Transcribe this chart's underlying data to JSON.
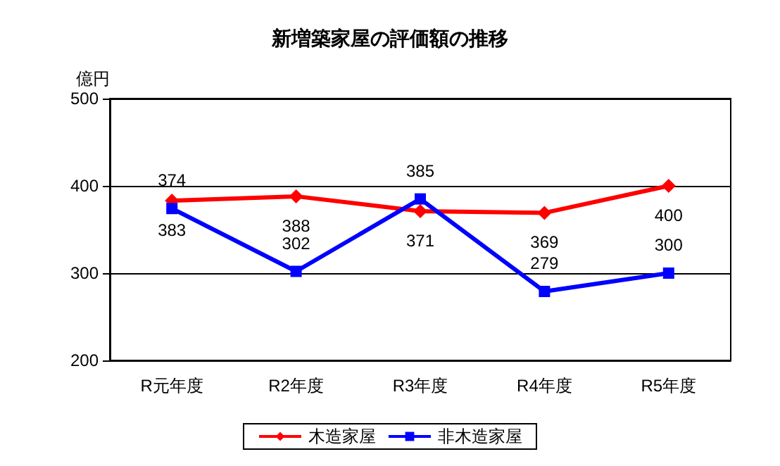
{
  "chart_data": {
    "type": "line",
    "title": "新増築家屋の評価額の推移",
    "ylabel": "億円",
    "categories": [
      "R元年度",
      "R2年度",
      "R3年度",
      "R4年度",
      "R5年度"
    ],
    "series": [
      {
        "name": "木造家屋",
        "color": "#ff0000",
        "marker": "diamond",
        "values": [
          383,
          388,
          371,
          369,
          400
        ]
      },
      {
        "name": "非木造家屋",
        "color": "#0000ff",
        "marker": "square",
        "values": [
          374,
          302,
          385,
          279,
          300
        ]
      }
    ],
    "ylim": [
      200,
      500
    ],
    "yticks": [
      200,
      300,
      400,
      500
    ],
    "grid": "y",
    "legend": "bottom",
    "data_labels": true
  }
}
